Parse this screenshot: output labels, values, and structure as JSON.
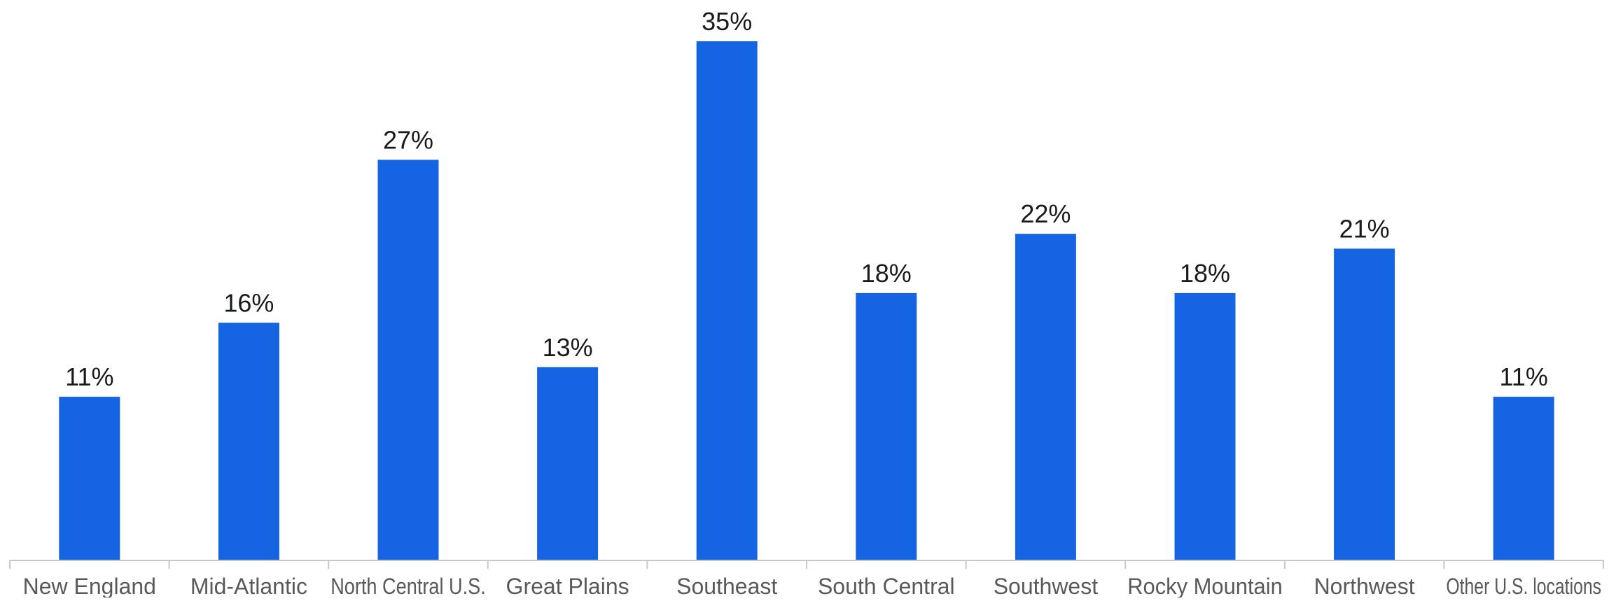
{
  "chart_data": {
    "type": "bar",
    "categories": [
      "New England",
      "Mid-Atlantic",
      "North Central U.S.",
      "Great Plains",
      "Southeast",
      "South Central",
      "Southwest",
      "Rocky Mountain",
      "Northwest",
      "Other U.S. locations"
    ],
    "values": [
      11,
      16,
      27,
      13,
      35,
      18,
      22,
      18,
      21,
      11
    ],
    "value_labels": [
      "11%",
      "16%",
      "27%",
      "13%",
      "35%",
      "18%",
      "22%",
      "18%",
      "21%",
      "11%"
    ],
    "unit": "%",
    "title": "",
    "xlabel": "",
    "ylabel": "",
    "ylim": [
      0,
      35
    ],
    "grid": false,
    "legend": "none",
    "bar_color": "#1565E3",
    "axis_color": "#c8c8c8"
  }
}
